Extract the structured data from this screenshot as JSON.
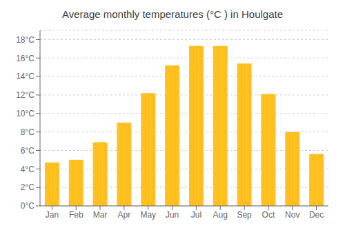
{
  "chart_data": {
    "type": "bar",
    "title": "Average monthly temperatures (°C ) in Houlgate",
    "categories": [
      "Jan",
      "Feb",
      "Mar",
      "Apr",
      "May",
      "Jun",
      "Jul",
      "Aug",
      "Sep",
      "Oct",
      "Nov",
      "Dec"
    ],
    "values": [
      4.7,
      5.0,
      6.9,
      9.0,
      12.2,
      15.2,
      17.3,
      17.3,
      15.4,
      12.1,
      8.0,
      5.6
    ],
    "color": "#FFC020",
    "ylim": [
      0,
      19
    ],
    "yticks": [
      {
        "value": 0,
        "label": "0°C"
      },
      {
        "value": 2,
        "label": "2°C"
      },
      {
        "value": 4,
        "label": "4°C"
      },
      {
        "value": 6,
        "label": "6°C"
      },
      {
        "value": 8,
        "label": "8°C"
      },
      {
        "value": 10,
        "label": "10°C"
      },
      {
        "value": 12,
        "label": "12°C"
      },
      {
        "value": 14,
        "label": "14°C"
      },
      {
        "value": 16,
        "label": "16°C"
      },
      {
        "value": 18,
        "label": "18°C"
      }
    ],
    "grid": true
  }
}
